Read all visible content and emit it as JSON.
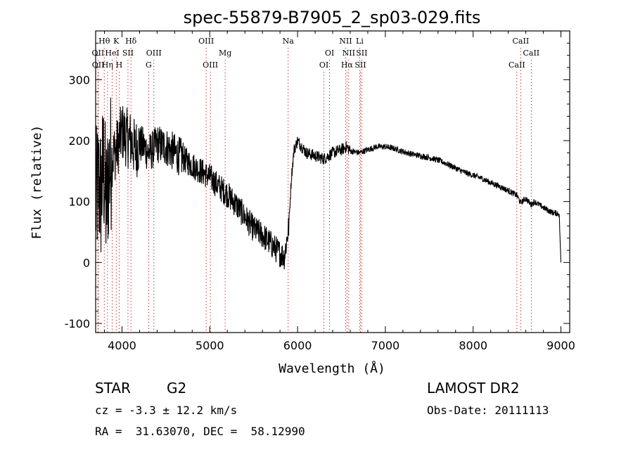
{
  "chart_data": {
    "type": "line",
    "title": "spec-55879-B7905_2_sp03-029.fits",
    "xlabel": "Wavelength (Å)",
    "ylabel": "Flux (relative)",
    "xlim": [
      3700,
      9100
    ],
    "ylim": [
      -115,
      380
    ],
    "xticks": [
      4000,
      5000,
      6000,
      7000,
      8000,
      9000
    ],
    "yticks": [
      -100,
      0,
      100,
      200,
      300
    ],
    "line_color": "#000000",
    "marker_color": "#cc0000",
    "grid": false,
    "series": [
      {
        "x": [
          3700,
          3730,
          3760,
          3790,
          3820,
          3850,
          3880,
          3910,
          3950,
          4000,
          4050,
          4100,
          4150,
          4200,
          4250,
          4300,
          4350,
          4400,
          4450,
          4500,
          4600,
          4700,
          4800,
          4900,
          5000,
          5100,
          5200,
          5300,
          5400,
          5500,
          5600,
          5700,
          5800,
          5850,
          5900,
          5930,
          5960,
          6000,
          6050,
          6100,
          6200,
          6300,
          6400,
          6500,
          6560,
          6600,
          6700,
          6800,
          6900,
          7000,
          7100,
          7200,
          7300,
          7400,
          7500,
          7600,
          7700,
          7800,
          7900,
          8000,
          8100,
          8200,
          8300,
          8400,
          8500,
          8540,
          8600,
          8660,
          8700,
          8800,
          8900,
          8980,
          9000
        ],
        "y": [
          95,
          130,
          110,
          160,
          90,
          150,
          170,
          180,
          190,
          215,
          205,
          200,
          185,
          195,
          190,
          180,
          185,
          195,
          192,
          190,
          180,
          170,
          160,
          150,
          140,
          125,
          112,
          95,
          75,
          55,
          45,
          30,
          15,
          10,
          60,
          140,
          185,
          200,
          190,
          180,
          175,
          170,
          180,
          185,
          190,
          183,
          180,
          185,
          190,
          190,
          187,
          182,
          178,
          175,
          172,
          168,
          162,
          155,
          148,
          143,
          138,
          131,
          125,
          118,
          110,
          98,
          105,
          95,
          100,
          90,
          82,
          80,
          0
        ]
      }
    ],
    "lines": [
      {
        "label": "Hθ",
        "x": 3798,
        "row": 0
      },
      {
        "label": "K",
        "x": 3934,
        "row": 0
      },
      {
        "label": "Hδ",
        "x": 4102,
        "row": 0
      },
      {
        "label": "OIII",
        "x": 4959,
        "row": 0
      },
      {
        "label": "Na",
        "x": 5893,
        "row": 0
      },
      {
        "label": "NII",
        "x": 6548,
        "row": 0
      },
      {
        "label": "Li",
        "x": 6708,
        "row": 0
      },
      {
        "label": "CaII",
        "x": 8542,
        "row": 0
      },
      {
        "label": "OII",
        "x": 3727,
        "row": 1
      },
      {
        "label": "HeI",
        "x": 3889,
        "row": 1
      },
      {
        "label": "SII",
        "x": 4068,
        "row": 1
      },
      {
        "label": "OIII",
        "x": 4363,
        "row": 1
      },
      {
        "label": "Mg",
        "x": 5175,
        "row": 1
      },
      {
        "label": "OI",
        "x": 6364,
        "row": 1
      },
      {
        "label": "NII",
        "x": 6583,
        "row": 1
      },
      {
        "label": "SII",
        "x": 6731,
        "row": 1
      },
      {
        "label": "CaII",
        "x": 8662,
        "row": 1
      },
      {
        "label": "OII",
        "x": 3729,
        "row": 2
      },
      {
        "label": "Hη",
        "x": 3835,
        "row": 2
      },
      {
        "label": "H",
        "x": 3968,
        "row": 2
      },
      {
        "label": "G",
        "x": 4304,
        "row": 2
      },
      {
        "label": "OIII",
        "x": 5007,
        "row": 2
      },
      {
        "label": "OI",
        "x": 6300,
        "row": 2
      },
      {
        "label": "Hα",
        "x": 6563,
        "row": 2
      },
      {
        "label": "SII",
        "x": 6716,
        "row": 2
      },
      {
        "label": "CaII",
        "x": 8498,
        "row": 2
      }
    ]
  },
  "info": {
    "class": "STAR",
    "subclass": "G2",
    "survey": "LAMOST DR2",
    "cz": "cz = -3.3 ± 12.2 km/s",
    "obs_date": "Obs-Date: 20111113",
    "coords": "RA =  31.63070, DEC =  58.12990"
  }
}
